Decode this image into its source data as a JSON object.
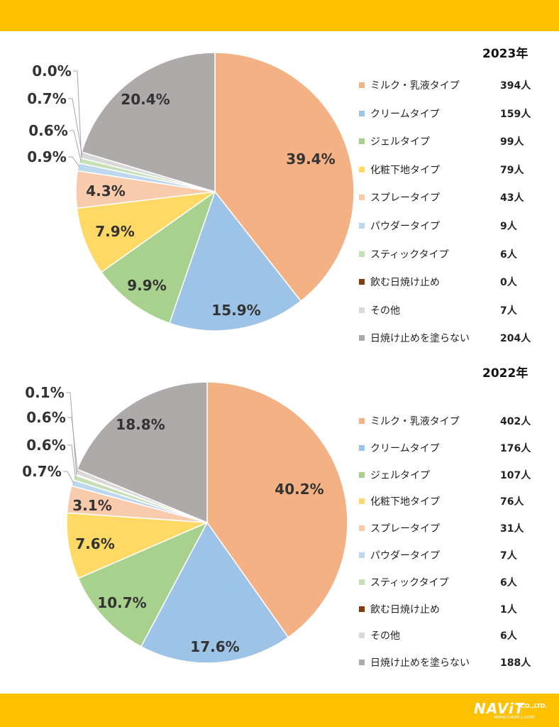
{
  "colors": {
    "band": "#FFC000",
    "series": [
      "#F4B183",
      "#9DC3E6",
      "#A9D18E",
      "#FFD966",
      "#F8CBAD",
      "#BDD7EE",
      "#C5E0B4",
      "#843C0C",
      "#D9D9D9",
      "#AEAAAA"
    ]
  },
  "logo": {
    "main": "NAViT",
    "co": "CO.,LTD.",
    "url": "www.navit-j.com"
  },
  "chart_data": [
    {
      "type": "pie",
      "title": "2023年",
      "categories": [
        "ミルク・乳液タイプ",
        "クリームタイプ",
        "ジェルタイプ",
        "化粧下地タイプ",
        "スプレータイプ",
        "パウダータイプ",
        "スティックタイプ",
        "飲む日焼け止め",
        "その他",
        "日焼け止めを塗らない"
      ],
      "counts": [
        "394人",
        "159人",
        "99人",
        "79人",
        "43人",
        "9人",
        "6人",
        "0人",
        "7人",
        "204人"
      ],
      "values": [
        394,
        159,
        99,
        79,
        43,
        9,
        6,
        0,
        7,
        204
      ],
      "percent_labels": [
        "39.4%",
        "15.9%",
        "9.9%",
        "7.9%",
        "4.3%",
        "0.9%",
        "0.6%",
        "0.0%",
        "0.7%",
        "20.4%"
      ],
      "legend": "right"
    },
    {
      "type": "pie",
      "title": "2022年",
      "categories": [
        "ミルク・乳液タイプ",
        "クリームタイプ",
        "ジェルタイプ",
        "化粧下地タイプ",
        "スプレータイプ",
        "パウダータイプ",
        "スティックタイプ",
        "飲む日焼け止め",
        "その他",
        "日焼け止めを塗らない"
      ],
      "counts": [
        "402人",
        "176人",
        "107人",
        "76人",
        "31人",
        "7人",
        "6人",
        "1人",
        "6人",
        "188人"
      ],
      "values": [
        402,
        176,
        107,
        76,
        31,
        7,
        6,
        1,
        6,
        188
      ],
      "percent_labels": [
        "40.2%",
        "17.6%",
        "10.7%",
        "7.6%",
        "3.1%",
        "0.7%",
        "0.6%",
        "0.1%",
        "0.6%",
        "18.8%"
      ],
      "legend": "right"
    }
  ]
}
